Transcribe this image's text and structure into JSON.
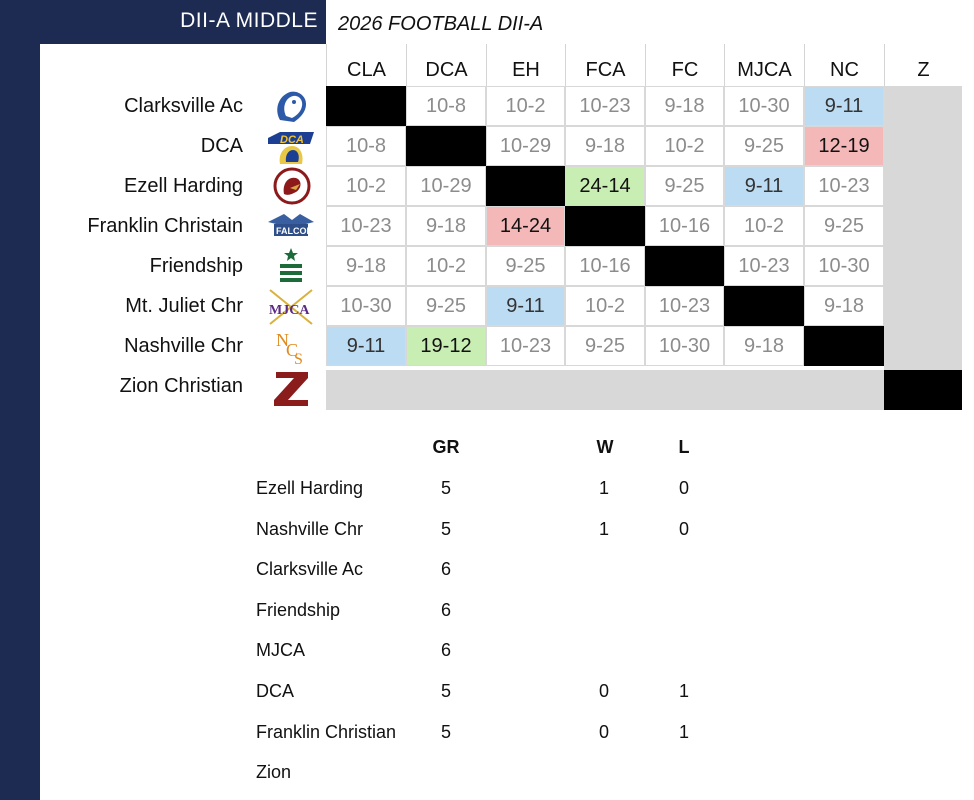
{
  "header": {
    "left_title": "DII-A  MIDDLE",
    "right_title": "2026  FOOTBALL DII-A"
  },
  "columns": [
    "CLA",
    "DCA",
    "EH",
    "FCA",
    "FC",
    "MJCA",
    "NC",
    "Z"
  ],
  "rows": [
    {
      "name": "Clarksville Ac",
      "logo": "clarksville-logo",
      "cells": [
        {
          "v": "",
          "s": "black"
        },
        {
          "v": "10-8",
          "s": ""
        },
        {
          "v": "10-2",
          "s": ""
        },
        {
          "v": "10-23",
          "s": ""
        },
        {
          "v": "9-18",
          "s": ""
        },
        {
          "v": "10-30",
          "s": ""
        },
        {
          "v": "9-11",
          "s": "blue"
        }
      ]
    },
    {
      "name": "DCA",
      "logo": "dca-logo",
      "cells": [
        {
          "v": "10-8",
          "s": ""
        },
        {
          "v": "",
          "s": "black"
        },
        {
          "v": "10-29",
          "s": ""
        },
        {
          "v": "9-18",
          "s": ""
        },
        {
          "v": "10-2",
          "s": ""
        },
        {
          "v": "9-25",
          "s": ""
        },
        {
          "v": "12-19",
          "s": "red"
        }
      ]
    },
    {
      "name": "Ezell Harding",
      "logo": "ezell-harding-logo",
      "cells": [
        {
          "v": "10-2",
          "s": ""
        },
        {
          "v": "10-29",
          "s": ""
        },
        {
          "v": "",
          "s": "black"
        },
        {
          "v": "24-14",
          "s": "green"
        },
        {
          "v": "9-25",
          "s": ""
        },
        {
          "v": "9-11",
          "s": "blue"
        },
        {
          "v": "10-23",
          "s": ""
        }
      ]
    },
    {
      "name": "Franklin Christain",
      "logo": "falcons-logo",
      "cells": [
        {
          "v": "10-23",
          "s": ""
        },
        {
          "v": "9-18",
          "s": ""
        },
        {
          "v": "14-24",
          "s": "red"
        },
        {
          "v": "",
          "s": "black"
        },
        {
          "v": "10-16",
          "s": ""
        },
        {
          "v": "10-2",
          "s": ""
        },
        {
          "v": "9-25",
          "s": ""
        }
      ]
    },
    {
      "name": "Friendship",
      "logo": "friendship-logo",
      "cells": [
        {
          "v": "9-18",
          "s": ""
        },
        {
          "v": "10-2",
          "s": ""
        },
        {
          "v": "9-25",
          "s": ""
        },
        {
          "v": "10-16",
          "s": ""
        },
        {
          "v": "",
          "s": "black"
        },
        {
          "v": "10-23",
          "s": ""
        },
        {
          "v": "10-30",
          "s": ""
        }
      ]
    },
    {
      "name": "Mt. Juliet Chr",
      "logo": "mjca-logo",
      "cells": [
        {
          "v": "10-30",
          "s": ""
        },
        {
          "v": "9-25",
          "s": ""
        },
        {
          "v": "9-11",
          "s": "blue"
        },
        {
          "v": "10-2",
          "s": ""
        },
        {
          "v": "10-23",
          "s": ""
        },
        {
          "v": "",
          "s": "black"
        },
        {
          "v": "9-18",
          "s": ""
        }
      ]
    },
    {
      "name": "Nashville Chr",
      "logo": "ncs-logo",
      "cells": [
        {
          "v": "9-11",
          "s": "blue"
        },
        {
          "v": "19-12",
          "s": "green"
        },
        {
          "v": "10-23",
          "s": ""
        },
        {
          "v": "9-25",
          "s": ""
        },
        {
          "v": "10-30",
          "s": ""
        },
        {
          "v": "9-18",
          "s": ""
        },
        {
          "v": "",
          "s": "black"
        }
      ]
    },
    {
      "name": "Zion Christian",
      "logo": "zion-logo",
      "cells": []
    }
  ],
  "colors": {
    "navy": "#1d2a52",
    "blue": "#bcdcf3",
    "red": "#f5b8b8",
    "green": "#c9eeb3",
    "gray": "#d8d8d8"
  },
  "standings": {
    "headers": {
      "gr": "GR",
      "w": "W",
      "l": "L"
    },
    "rows": [
      {
        "team": "Ezell Harding",
        "gr": "5",
        "w": "1",
        "l": "0"
      },
      {
        "team": "Nashville Chr",
        "gr": "5",
        "w": "1",
        "l": "0"
      },
      {
        "team": "Clarksville Ac",
        "gr": "6",
        "w": "",
        "l": ""
      },
      {
        "team": "Friendship",
        "gr": "6",
        "w": "",
        "l": ""
      },
      {
        "team": "MJCA",
        "gr": "6",
        "w": "",
        "l": ""
      },
      {
        "team": "DCA",
        "gr": "5",
        "w": "0",
        "l": "1"
      },
      {
        "team": "Franklin Christian",
        "gr": "5",
        "w": "0",
        "l": "1"
      },
      {
        "team": "Zion",
        "gr": "",
        "w": "",
        "l": ""
      }
    ]
  }
}
